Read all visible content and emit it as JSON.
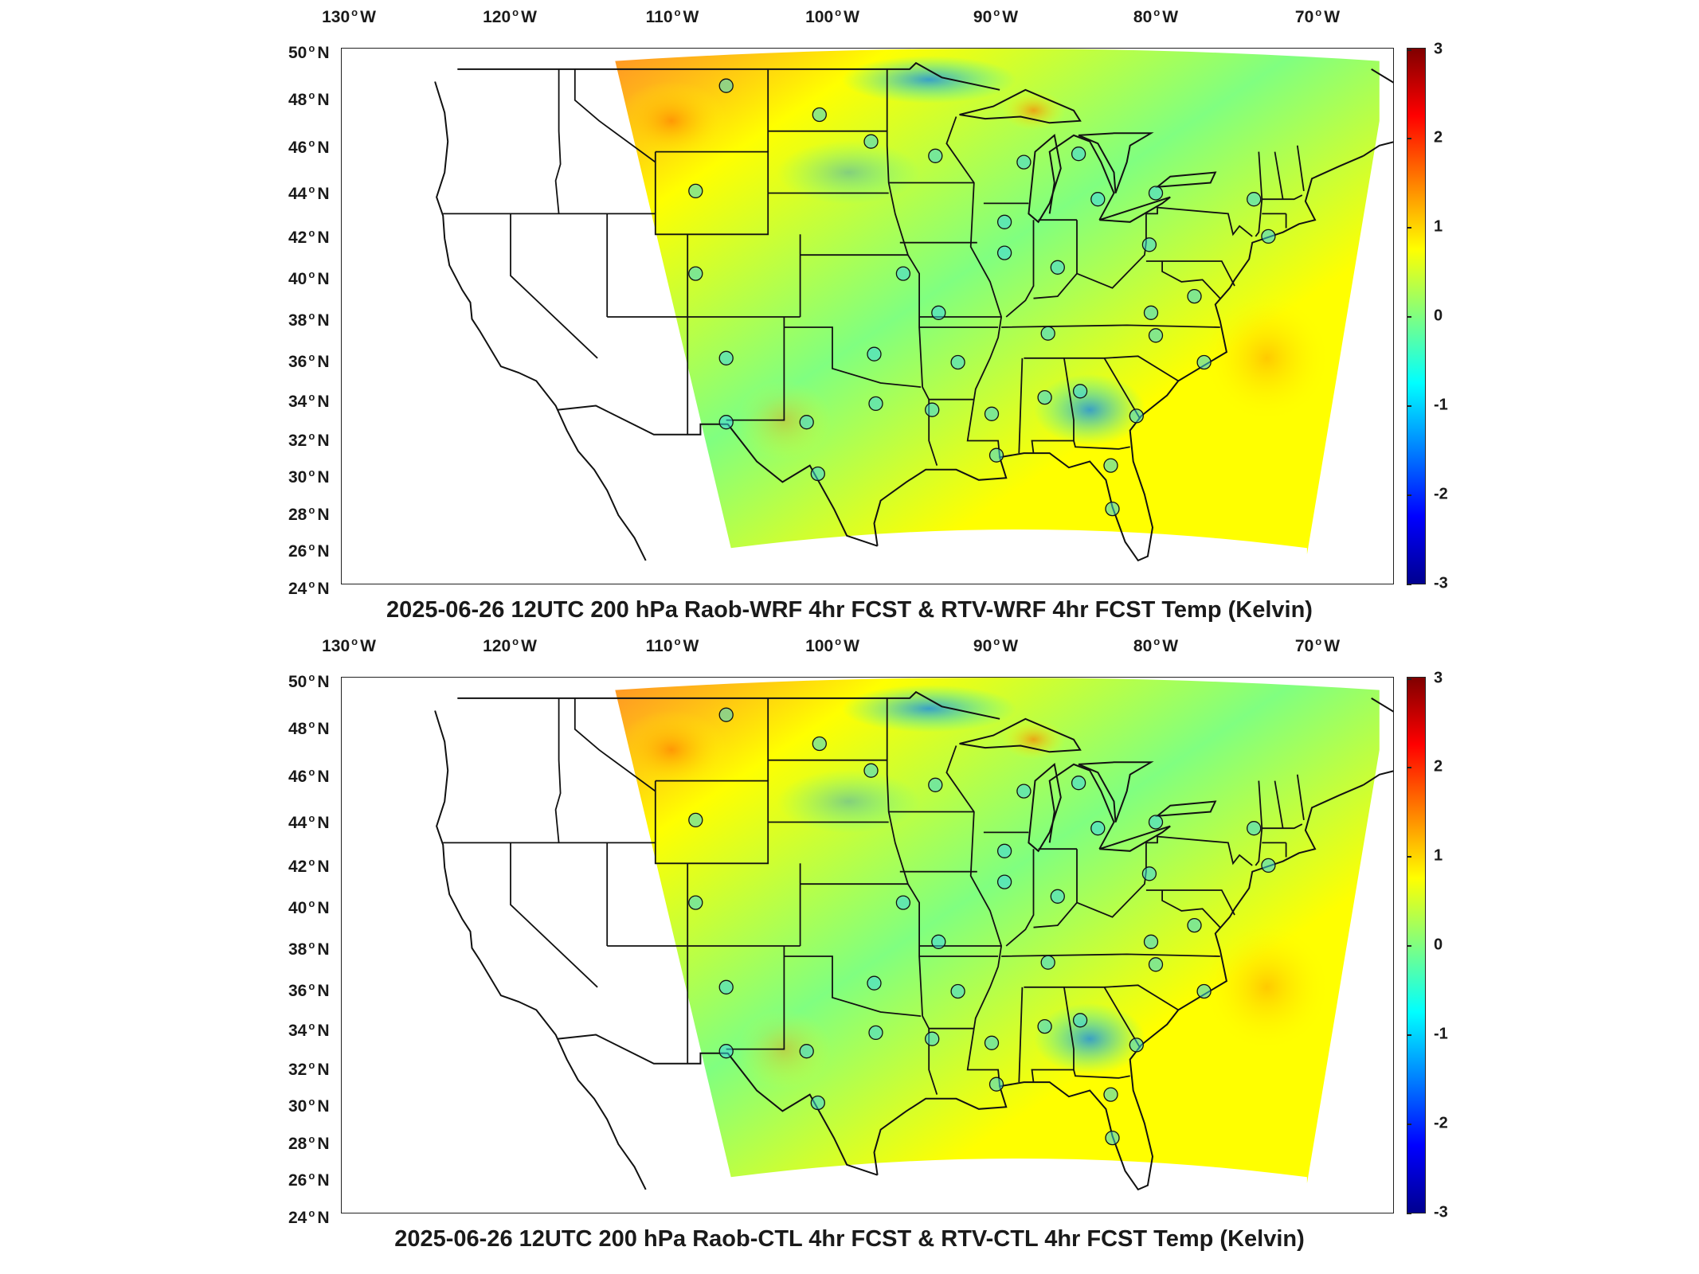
{
  "colors": {
    "colormap": [
      "#00008f",
      "#0000ff",
      "#0080ff",
      "#00ffff",
      "#80ff80",
      "#ffff00",
      "#ff8000",
      "#ff0000",
      "#800000"
    ],
    "domain_fill": "#c8e86a",
    "station_fill": "#3ad6e0"
  },
  "axes": {
    "lon_labels": [
      {
        "deg": "130",
        "dir": "W"
      },
      {
        "deg": "120",
        "dir": "W"
      },
      {
        "deg": "110",
        "dir": "W"
      },
      {
        "deg": "100",
        "dir": "W"
      },
      {
        "deg": "90",
        "dir": "W"
      },
      {
        "deg": "80",
        "dir": "W"
      },
      {
        "deg": "70",
        "dir": "W"
      }
    ],
    "lat_labels": [
      {
        "deg": "50",
        "dir": "N"
      },
      {
        "deg": "48",
        "dir": "N"
      },
      {
        "deg": "46",
        "dir": "N"
      },
      {
        "deg": "44",
        "dir": "N"
      },
      {
        "deg": "42",
        "dir": "N"
      },
      {
        "deg": "40",
        "dir": "N"
      },
      {
        "deg": "38",
        "dir": "N"
      },
      {
        "deg": "36",
        "dir": "N"
      },
      {
        "deg": "34",
        "dir": "N"
      },
      {
        "deg": "32",
        "dir": "N"
      },
      {
        "deg": "30",
        "dir": "N"
      },
      {
        "deg": "28",
        "dir": "N"
      },
      {
        "deg": "26",
        "dir": "N"
      },
      {
        "deg": "24",
        "dir": "N"
      }
    ],
    "colorbar_ticks": [
      "3",
      "2",
      "1",
      "0",
      "-1",
      "-2",
      "-3"
    ]
  },
  "panels": [
    {
      "title": "2025-06-26 12UTC 200 hPa Raob-WRF 4hr FCST & RTV-WRF 4hr FCST Temp (Kelvin)"
    },
    {
      "title": "2025-06-26 12UTC 200 hPa Raob-CTL 4hr FCST & RTV-CTL 4hr FCST Temp (Kelvin)"
    }
  ]
}
